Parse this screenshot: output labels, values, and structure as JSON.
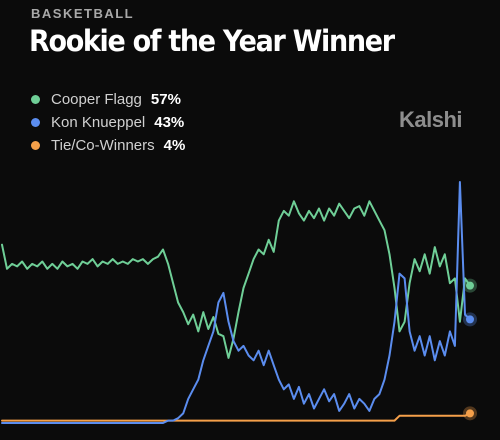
{
  "header": {
    "category": "BASKETBALL",
    "title": "Rookie of the Year Winner",
    "brand": "Kalshi"
  },
  "colors": {
    "background": "#0b0b0b",
    "green": "#6fcf97",
    "blue": "#5b8def",
    "orange": "#f5a04a"
  },
  "chart_data": {
    "type": "line",
    "title": "Rookie of the Year Winner",
    "xlabel": "",
    "ylabel": "",
    "ylim": [
      0,
      100
    ],
    "grid": false,
    "legend": "top-left",
    "x": [
      0,
      1,
      2,
      3,
      4,
      5,
      6,
      7,
      8,
      9,
      10,
      11,
      12,
      13,
      14,
      15,
      16,
      17,
      18,
      19,
      20,
      21,
      22,
      23,
      24,
      25,
      26,
      27,
      28,
      29,
      30,
      31,
      32,
      33,
      34,
      35,
      36,
      37,
      38,
      39,
      40,
      41,
      42,
      43,
      44,
      45,
      46,
      47,
      48,
      49,
      50,
      51,
      52,
      53,
      54,
      55,
      56,
      57,
      58,
      59,
      60,
      61,
      62,
      63,
      64,
      65,
      66,
      67,
      68,
      69,
      70,
      71,
      72,
      73,
      74,
      75,
      76,
      77,
      78,
      79,
      80,
      81,
      82,
      83,
      84,
      85,
      86,
      87,
      88,
      89,
      90,
      91,
      92,
      93
    ],
    "series": [
      {
        "name": "Cooper Flagg",
        "label": "Cooper Flagg",
        "value_label": "57%",
        "color": "#6fcf97",
        "values": [
          74,
          64,
          66,
          65,
          67,
          64,
          66,
          65,
          67,
          64,
          66,
          64,
          67,
          65,
          66,
          64,
          67,
          66,
          68,
          65,
          67,
          66,
          68,
          66,
          67,
          66,
          68,
          67,
          68,
          66,
          68,
          69,
          72,
          66,
          58,
          50,
          46,
          41,
          45,
          38,
          46,
          39,
          44,
          37,
          36,
          27,
          35,
          46,
          56,
          62,
          68,
          72,
          70,
          76,
          71,
          84,
          88,
          86,
          92,
          87,
          84,
          88,
          85,
          89,
          84,
          89,
          86,
          91,
          88,
          85,
          89,
          90,
          86,
          92,
          88,
          84,
          80,
          70,
          56,
          38,
          42,
          58,
          68,
          63,
          70,
          62,
          73,
          65,
          70,
          58,
          60,
          42,
          60,
          57
        ],
        "last_value": 57
      },
      {
        "name": "Kon Knueppel",
        "label": "Kon Knueppel",
        "value_label": "43%",
        "color": "#5b8def",
        "values": [
          0,
          0,
          0,
          0,
          0,
          0,
          0,
          0,
          0,
          0,
          0,
          0,
          0,
          0,
          0,
          0,
          0,
          0,
          0,
          0,
          0,
          0,
          0,
          0,
          0,
          0,
          0,
          0,
          0,
          0,
          0,
          0,
          0,
          1,
          1,
          2,
          4,
          10,
          14,
          18,
          26,
          32,
          38,
          50,
          54,
          42,
          34,
          30,
          32,
          28,
          26,
          30,
          24,
          30,
          24,
          18,
          14,
          16,
          10,
          15,
          8,
          12,
          6,
          10,
          14,
          9,
          12,
          5,
          8,
          12,
          6,
          10,
          8,
          5,
          10,
          12,
          18,
          28,
          42,
          62,
          60,
          38,
          30,
          36,
          28,
          36,
          26,
          34,
          28,
          38,
          32,
          100,
          45,
          43
        ],
        "last_value": 43
      },
      {
        "name": "Tie/Co-Winners",
        "label": "Tie/Co-Winners",
        "value_label": "4%",
        "color": "#f5a04a",
        "values": [
          1,
          1,
          1,
          1,
          1,
          1,
          1,
          1,
          1,
          1,
          1,
          1,
          1,
          1,
          1,
          1,
          1,
          1,
          1,
          1,
          1,
          1,
          1,
          1,
          1,
          1,
          1,
          1,
          1,
          1,
          1,
          1,
          1,
          1,
          1,
          1,
          1,
          1,
          1,
          1,
          1,
          1,
          1,
          1,
          1,
          1,
          1,
          1,
          1,
          1,
          1,
          1,
          1,
          1,
          1,
          1,
          1,
          1,
          1,
          1,
          1,
          1,
          1,
          1,
          1,
          1,
          1,
          1,
          1,
          1,
          1,
          1,
          1,
          1,
          1,
          1,
          1,
          1,
          1,
          3,
          3,
          3,
          3,
          3,
          3,
          3,
          3,
          3,
          3,
          3,
          3,
          3,
          3,
          4
        ],
        "last_value": 4
      }
    ]
  }
}
